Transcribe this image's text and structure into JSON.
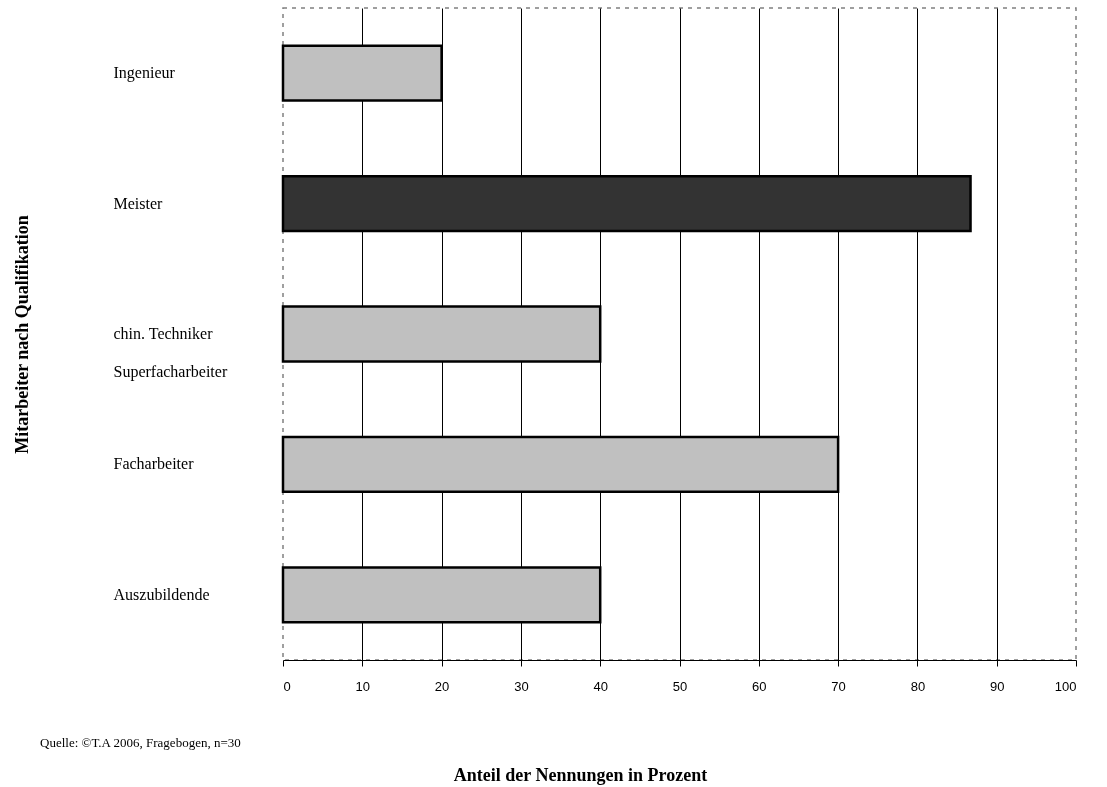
{
  "chart_data": {
    "type": "bar",
    "orientation": "horizontal",
    "categories": [
      "Ingenieur",
      "Meister",
      "chin. Techniker\nSuperfacharbeiter",
      "Facharbeiter",
      "Auszubildende"
    ],
    "values": [
      20,
      86.7,
      40,
      70,
      40
    ],
    "colors": [
      "#c0c0c0",
      "#333333",
      "#c0c0c0",
      "#c0c0c0",
      "#c0c0c0"
    ],
    "xlim": [
      0,
      100
    ],
    "xticks": [
      0,
      10,
      20,
      30,
      40,
      50,
      60,
      70,
      80,
      90,
      100
    ],
    "xlabel": "Anteil der Nennungen in Prozent",
    "ylabel": "Mitarbeiter nach Qualifikation",
    "annotations": [
      "Quelle: ©T.A 2006, Fragebogen, n=30"
    ],
    "grid": "x"
  }
}
